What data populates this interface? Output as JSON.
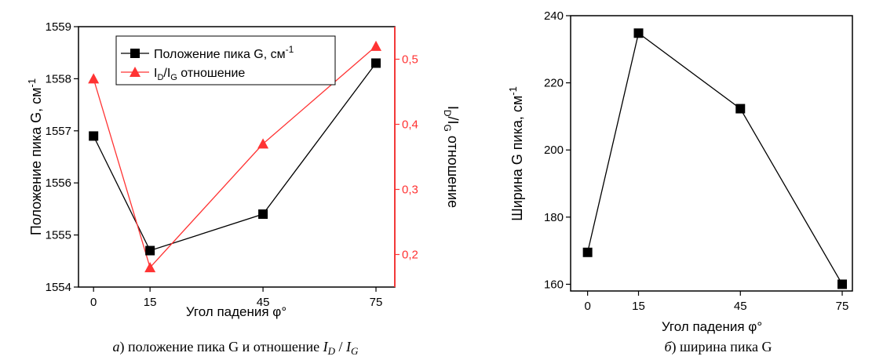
{
  "chart_data": [
    {
      "type": "line",
      "x": [
        0,
        15,
        45,
        75
      ],
      "x_tick_labels": [
        "0",
        "15",
        "45",
        "75"
      ],
      "xlabel": "Угол падения φ°",
      "ylabel_left": "Положение пика G, см",
      "ylabel_left_sup": "-1",
      "ylim_left": [
        1554,
        1559
      ],
      "yticks_left": [
        "1554",
        "1555",
        "1556",
        "1557",
        "1558",
        "1559"
      ],
      "ylabel_right_parts": [
        "I",
        "D",
        "/I",
        "G",
        " отношение"
      ],
      "ylim_right": [
        0.15,
        0.55
      ],
      "yticks_right": [
        "0,2",
        "0,3",
        "0,4",
        "0,5"
      ],
      "series": [
        {
          "name": "Положение пика G, см",
          "name_sup": "-1",
          "axis": "left",
          "color": "#000000",
          "marker": "square",
          "values": [
            1556.9,
            1554.7,
            1555.4,
            1558.3
          ]
        },
        {
          "name_parts": [
            "I",
            "D",
            "/I",
            "G",
            " отношение"
          ],
          "axis": "right",
          "color": "#ff3333",
          "marker": "triangle",
          "values": [
            0.47,
            0.18,
            0.37,
            0.52
          ]
        }
      ],
      "caption": {
        "letter": "а",
        "prefix": ") положение пика G и отношение ",
        "i1": "I",
        "s1": "D",
        "mid": " / ",
        "i2": "I",
        "s2": "G"
      }
    },
    {
      "type": "line",
      "x": [
        0,
        15,
        45,
        75
      ],
      "x_tick_labels": [
        "0",
        "15",
        "45",
        "75"
      ],
      "xlabel": "Угол падения φ°",
      "ylabel": "Ширина G пика, см",
      "ylabel_sup": "-1",
      "ylim": [
        158,
        240
      ],
      "yticks": [
        "160",
        "180",
        "200",
        "220",
        "240"
      ],
      "series": [
        {
          "color": "#000000",
          "marker": "square",
          "values": [
            169.5,
            234.8,
            212.3,
            160.0
          ]
        }
      ],
      "caption": {
        "letter": "б",
        "text": ") ширина пика G"
      }
    }
  ]
}
